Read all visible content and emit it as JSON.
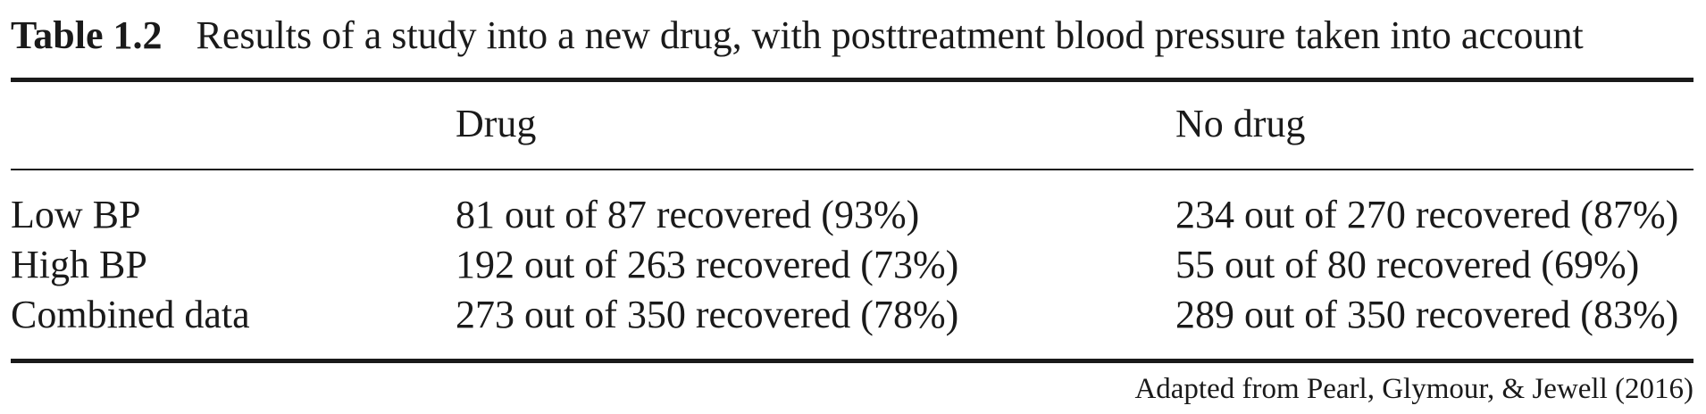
{
  "table": {
    "label": "Table 1.2",
    "title": "Results of a study into a new drug, with posttreatment blood pressure taken into account",
    "columns": [
      "",
      "Drug",
      "No drug"
    ],
    "rows": [
      {
        "label": "Low BP",
        "drug": "81 out of 87 recovered (93%)",
        "no_drug": "234 out of 270 recovered (87%)"
      },
      {
        "label": "High BP",
        "drug": "192 out of 263 recovered (73%)",
        "no_drug": "55 out of 80 recovered (69%)"
      },
      {
        "label": "Combined data",
        "drug": "273 out of 350 recovered (78%)",
        "no_drug": "289 out of 350 recovered (83%)"
      }
    ],
    "source": "Adapted from Pearl, Glymour, & Jewell (2016)"
  }
}
